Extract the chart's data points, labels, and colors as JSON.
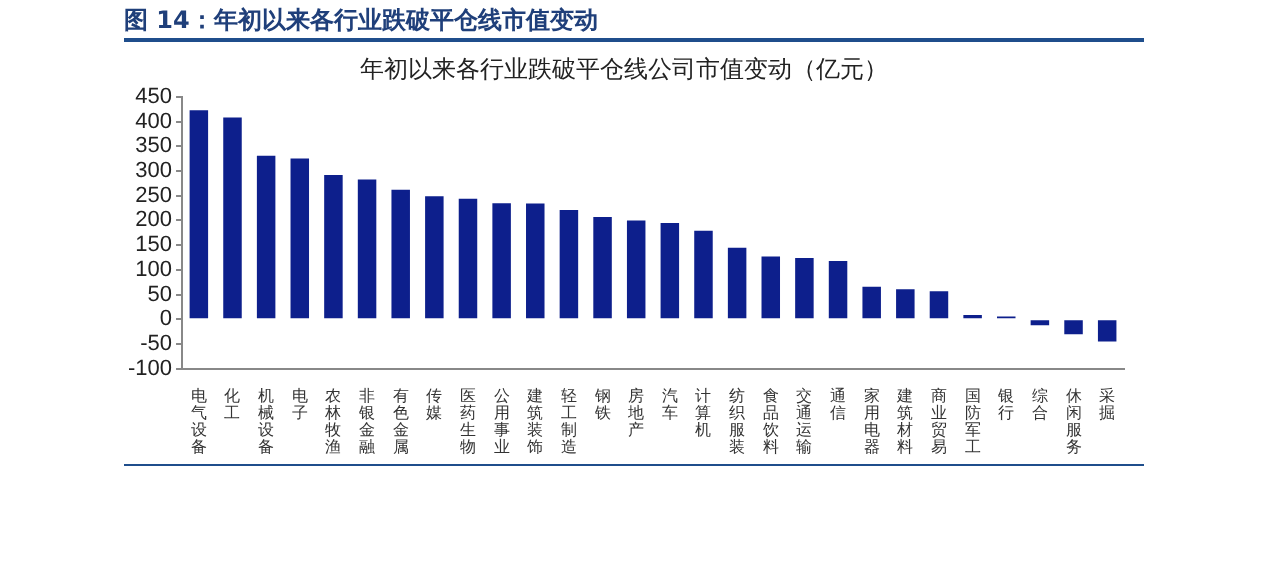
{
  "chart_data": {
    "type": "bar",
    "title": "年初以来各行业跌破平仓线公司市值变动（亿元）",
    "annotations": [
      "图 14：年初以来各行业跌破平仓线市值变动"
    ],
    "categories": [
      "电气设备",
      "化工",
      "机械设备",
      "电子",
      "农林牧渔",
      "非银金融",
      "有色金属",
      "传媒",
      "医药生物",
      "公用事业",
      "建筑装饰",
      "轻工制造",
      "钢铁",
      "房地产",
      "汽车",
      "计算机",
      "纺织服装",
      "食品饮料",
      "交通运输",
      "通信",
      "家用电器",
      "建筑材料",
      "商业贸易",
      "国防军工",
      "银行",
      "综合",
      "休闲服务",
      "采掘"
    ],
    "values": [
      423,
      408,
      331,
      325,
      292,
      283,
      262,
      249,
      244,
      235,
      234,
      221,
      207,
      200,
      195,
      179,
      145,
      127,
      124,
      118,
      66,
      61,
      57,
      9,
      6,
      -12,
      -30,
      -45
    ],
    "color": "#0d1f8c",
    "ylim": [
      -100,
      450
    ],
    "yticks": [
      -100,
      -50,
      0,
      50,
      100,
      150,
      200,
      250,
      300,
      350,
      400,
      450
    ],
    "grid": false,
    "legend": false
  }
}
